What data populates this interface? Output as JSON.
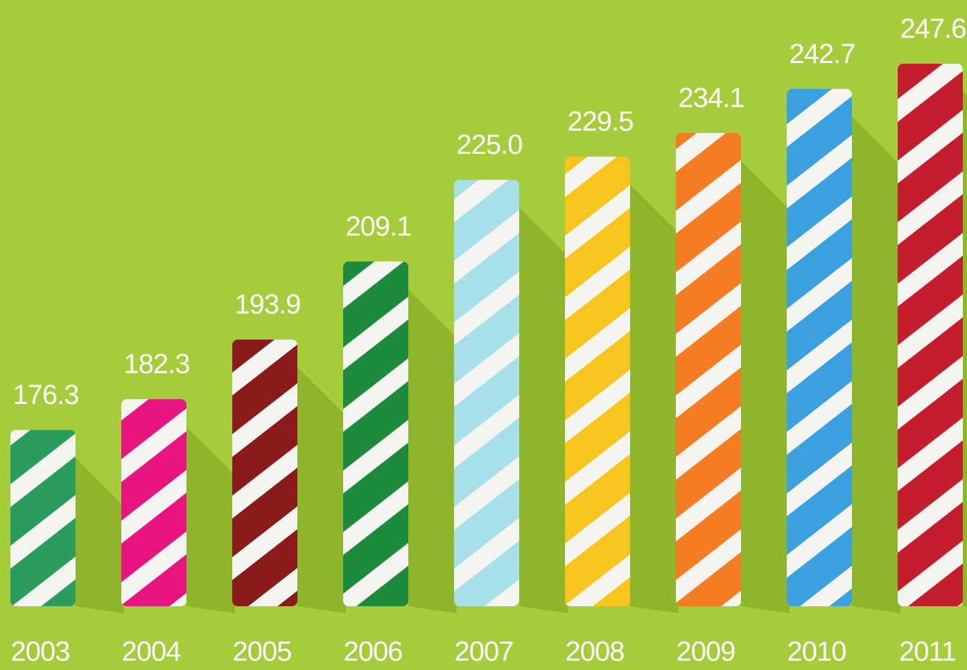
{
  "chart_data": {
    "type": "bar",
    "categories": [
      "2003",
      "2004",
      "2005",
      "2006",
      "2007",
      "2008",
      "2009",
      "2010",
      "2011"
    ],
    "values": [
      176.3,
      182.3,
      193.9,
      209.1,
      225.0,
      229.5,
      234.1,
      242.7,
      247.6
    ],
    "value_labels": [
      "176.3",
      "182.3",
      "193.9",
      "209.1",
      "225.0",
      "229.5",
      "234.1",
      "242.7",
      "247.6"
    ],
    "colors": [
      "#2a9d5c",
      "#e8147f",
      "#8b1a1a",
      "#1e8a3c",
      "#a8e0ea",
      "#f7c51e",
      "#f57c22",
      "#3aa0e0",
      "#c41e2e"
    ],
    "ylim": [
      142,
      260
    ]
  }
}
